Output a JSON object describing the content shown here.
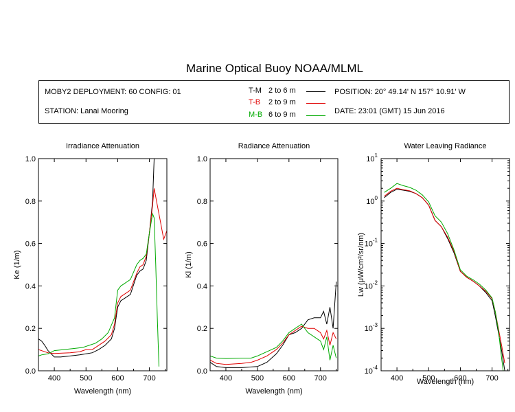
{
  "title": "Marine Optical Buoy NOAA/MLML",
  "info": {
    "deployment": "MOBY2 DEPLOYMENT: 60 CONFIG: 01",
    "station": "STATION: Lanai Mooring",
    "position": "POSITION: 20° 49.14' N   157° 10.91' W",
    "date": "DATE: 23:01 (GMT) 15 Jun 2016"
  },
  "legend": [
    {
      "code": "T-M",
      "range": "2 to 6  m",
      "color": "#000000"
    },
    {
      "code": "T-B",
      "range": "2 to 9  m",
      "color": "#e00000"
    },
    {
      "code": "M-B",
      "range": "6 to 9  m",
      "color": "#00aa00"
    }
  ],
  "chart_data": [
    {
      "type": "line",
      "title": "Irradiance Attenuation",
      "xlabel": "Wavelength (nm)",
      "ylabel": "Ke  (1/m)",
      "xlim": [
        350,
        755
      ],
      "ylim": [
        0,
        1.0
      ],
      "xticks": [
        400,
        500,
        600,
        700
      ],
      "yticks": [
        0.0,
        0.2,
        0.4,
        0.6,
        0.8,
        1.0
      ],
      "ytick_labels": [
        "0.0",
        "0.2",
        "0.4",
        "0.6",
        "0.8",
        "1.0"
      ],
      "series": [
        {
          "code": "T-M",
          "color": "#000000",
          "points": [
            [
              350,
              0.15
            ],
            [
              360,
              0.14
            ],
            [
              370,
              0.12
            ],
            [
              380,
              0.095
            ],
            [
              400,
              0.065
            ],
            [
              420,
              0.065
            ],
            [
              450,
              0.07
            ],
            [
              480,
              0.075
            ],
            [
              500,
              0.08
            ],
            [
              520,
              0.085
            ],
            [
              540,
              0.1
            ],
            [
              560,
              0.12
            ],
            [
              580,
              0.15
            ],
            [
              590,
              0.2
            ],
            [
              600,
              0.3
            ],
            [
              610,
              0.33
            ],
            [
              620,
              0.34
            ],
            [
              640,
              0.36
            ],
            [
              660,
              0.45
            ],
            [
              670,
              0.47
            ],
            [
              680,
              0.48
            ],
            [
              690,
              0.52
            ],
            [
              700,
              0.65
            ],
            [
              710,
              0.8
            ],
            [
              715,
              1.0
            ]
          ]
        },
        {
          "code": "T-B",
          "color": "#e00000",
          "points": [
            [
              350,
              0.1
            ],
            [
              370,
              0.09
            ],
            [
              380,
              0.085
            ],
            [
              400,
              0.082
            ],
            [
              450,
              0.085
            ],
            [
              480,
              0.09
            ],
            [
              500,
              0.1
            ],
            [
              520,
              0.1
            ],
            [
              540,
              0.12
            ],
            [
              560,
              0.14
            ],
            [
              580,
              0.17
            ],
            [
              590,
              0.22
            ],
            [
              600,
              0.32
            ],
            [
              610,
              0.35
            ],
            [
              620,
              0.36
            ],
            [
              640,
              0.38
            ],
            [
              660,
              0.46
            ],
            [
              670,
              0.49
            ],
            [
              680,
              0.5
            ],
            [
              690,
              0.54
            ],
            [
              700,
              0.65
            ],
            [
              710,
              0.78
            ],
            [
              715,
              0.86
            ],
            [
              725,
              0.78
            ],
            [
              735,
              0.7
            ],
            [
              745,
              0.62
            ],
            [
              755,
              0.66
            ]
          ]
        },
        {
          "code": "M-B",
          "color": "#00aa00",
          "points": [
            [
              350,
              0.07
            ],
            [
              360,
              0.075
            ],
            [
              380,
              0.08
            ],
            [
              400,
              0.095
            ],
            [
              430,
              0.1
            ],
            [
              460,
              0.105
            ],
            [
              490,
              0.11
            ],
            [
              510,
              0.12
            ],
            [
              530,
              0.13
            ],
            [
              550,
              0.15
            ],
            [
              570,
              0.18
            ],
            [
              590,
              0.25
            ],
            [
              600,
              0.38
            ],
            [
              610,
              0.4
            ],
            [
              620,
              0.41
            ],
            [
              640,
              0.43
            ],
            [
              660,
              0.5
            ],
            [
              670,
              0.52
            ],
            [
              680,
              0.53
            ],
            [
              690,
              0.55
            ],
            [
              700,
              0.65
            ],
            [
              710,
              0.74
            ],
            [
              715,
              0.72
            ],
            [
              720,
              0.5
            ],
            [
              725,
              0.25
            ],
            [
              730,
              0.02
            ]
          ]
        }
      ]
    },
    {
      "type": "line",
      "title": "Radiance Attenuation",
      "xlabel": "Wavelength (nm)",
      "ylabel": "Kl  (1/m)",
      "xlim": [
        350,
        755
      ],
      "ylim": [
        0,
        1.0
      ],
      "xticks": [
        400,
        500,
        600,
        700
      ],
      "yticks": [
        0.0,
        0.2,
        0.4,
        0.6,
        0.8,
        1.0
      ],
      "ytick_labels": [
        "0.0",
        "0.2",
        "0.4",
        "0.6",
        "0.8",
        "1.0"
      ],
      "series": [
        {
          "code": "T-M",
          "color": "#000000",
          "points": [
            [
              350,
              0.04
            ],
            [
              370,
              0.02
            ],
            [
              400,
              0.015
            ],
            [
              450,
              0.015
            ],
            [
              500,
              0.02
            ],
            [
              530,
              0.04
            ],
            [
              560,
              0.08
            ],
            [
              580,
              0.12
            ],
            [
              600,
              0.17
            ],
            [
              620,
              0.18
            ],
            [
              640,
              0.2
            ],
            [
              660,
              0.24
            ],
            [
              680,
              0.25
            ],
            [
              700,
              0.25
            ],
            [
              710,
              0.28
            ],
            [
              720,
              0.22
            ],
            [
              730,
              0.3
            ],
            [
              740,
              0.2
            ],
            [
              750,
              0.42
            ]
          ]
        },
        {
          "code": "T-B",
          "color": "#e00000",
          "points": [
            [
              350,
              0.05
            ],
            [
              370,
              0.035
            ],
            [
              400,
              0.03
            ],
            [
              450,
              0.035
            ],
            [
              480,
              0.04
            ],
            [
              500,
              0.05
            ],
            [
              530,
              0.07
            ],
            [
              560,
              0.1
            ],
            [
              580,
              0.13
            ],
            [
              600,
              0.17
            ],
            [
              620,
              0.19
            ],
            [
              640,
              0.21
            ],
            [
              660,
              0.2
            ],
            [
              680,
              0.2
            ],
            [
              700,
              0.18
            ],
            [
              710,
              0.15
            ],
            [
              720,
              0.19
            ],
            [
              730,
              0.12
            ],
            [
              740,
              0.18
            ],
            [
              750,
              0.15
            ]
          ]
        },
        {
          "code": "M-B",
          "color": "#00aa00",
          "points": [
            [
              350,
              0.07
            ],
            [
              370,
              0.06
            ],
            [
              400,
              0.058
            ],
            [
              450,
              0.06
            ],
            [
              480,
              0.06
            ],
            [
              500,
              0.07
            ],
            [
              530,
              0.09
            ],
            [
              560,
              0.11
            ],
            [
              580,
              0.14
            ],
            [
              600,
              0.18
            ],
            [
              620,
              0.2
            ],
            [
              640,
              0.22
            ],
            [
              660,
              0.18
            ],
            [
              680,
              0.16
            ],
            [
              700,
              0.14
            ],
            [
              710,
              0.1
            ],
            [
              720,
              0.16
            ],
            [
              730,
              0.05
            ],
            [
              740,
              0.12
            ],
            [
              750,
              0.06
            ]
          ]
        }
      ]
    },
    {
      "type": "line",
      "title": "Water Leaving Radiance",
      "xlabel": "Wavelength (nm)",
      "ylabel": "Lw  (μW/cm²/sr/nm)",
      "yscale": "log",
      "xlim": [
        350,
        755
      ],
      "ylim": [
        0.0001,
        10
      ],
      "xticks": [
        400,
        500,
        600,
        700
      ],
      "yticks": [
        0.0001,
        0.001,
        0.01,
        0.1,
        1,
        10
      ],
      "ytick_bases": [
        "10",
        "10",
        "10",
        "10",
        "10",
        "10"
      ],
      "ytick_exps": [
        "-4",
        "-3",
        "-2",
        "-1",
        "0",
        "1"
      ],
      "series": [
        {
          "code": "T-M",
          "color": "#000000",
          "points": [
            [
              360,
              1.2
            ],
            [
              380,
              1.6
            ],
            [
              400,
              1.9
            ],
            [
              420,
              1.8
            ],
            [
              440,
              1.7
            ],
            [
              460,
              1.5
            ],
            [
              480,
              1.2
            ],
            [
              500,
              0.8
            ],
            [
              520,
              0.35
            ],
            [
              540,
              0.25
            ],
            [
              560,
              0.13
            ],
            [
              580,
              0.06
            ],
            [
              600,
              0.022
            ],
            [
              620,
              0.016
            ],
            [
              640,
              0.013
            ],
            [
              660,
              0.01
            ],
            [
              680,
              0.007
            ],
            [
              700,
              0.0045
            ],
            [
              710,
              0.002
            ],
            [
              720,
              0.0008
            ],
            [
              730,
              0.0003
            ],
            [
              740,
              0.0001
            ]
          ]
        },
        {
          "code": "T-B",
          "color": "#e00000",
          "points": [
            [
              360,
              1.3
            ],
            [
              380,
              1.7
            ],
            [
              400,
              2.0
            ],
            [
              420,
              1.85
            ],
            [
              440,
              1.75
            ],
            [
              460,
              1.5
            ],
            [
              480,
              1.2
            ],
            [
              500,
              0.8
            ],
            [
              520,
              0.35
            ],
            [
              540,
              0.25
            ],
            [
              560,
              0.14
            ],
            [
              580,
              0.065
            ],
            [
              600,
              0.022
            ],
            [
              620,
              0.016
            ],
            [
              640,
              0.013
            ],
            [
              660,
              0.01
            ],
            [
              680,
              0.0075
            ],
            [
              700,
              0.005
            ],
            [
              710,
              0.0025
            ],
            [
              720,
              0.001
            ],
            [
              730,
              0.0004
            ],
            [
              740,
              0.00015
            ]
          ]
        },
        {
          "code": "M-B",
          "color": "#00aa00",
          "points": [
            [
              360,
              1.6
            ],
            [
              380,
              2.0
            ],
            [
              400,
              2.6
            ],
            [
              420,
              2.3
            ],
            [
              440,
              2.1
            ],
            [
              460,
              1.8
            ],
            [
              480,
              1.4
            ],
            [
              500,
              0.95
            ],
            [
              520,
              0.45
            ],
            [
              540,
              0.32
            ],
            [
              560,
              0.17
            ],
            [
              580,
              0.07
            ],
            [
              600,
              0.024
            ],
            [
              620,
              0.017
            ],
            [
              640,
              0.014
            ],
            [
              660,
              0.011
            ],
            [
              680,
              0.008
            ],
            [
              700,
              0.0052
            ],
            [
              710,
              0.0025
            ],
            [
              720,
              0.0009
            ],
            [
              730,
              0.0002
            ],
            [
              735,
              0.0001
            ]
          ]
        }
      ]
    }
  ]
}
